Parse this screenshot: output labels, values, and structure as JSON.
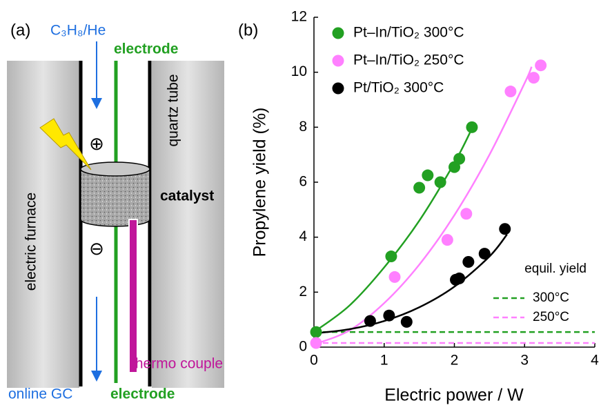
{
  "diagram": {
    "panel_label": "(a)",
    "feed_label": "C₃H₈/He",
    "top_electrode": "electrode",
    "tube_label": "quartz tube",
    "catalyst_label": "catalyst",
    "furnace_label": "electric furnace",
    "thermocouple_label": "thermo couple",
    "outlet_label": "online GC",
    "bottom_electrode": "electrode",
    "plus_sign": "⊕",
    "minus_sign": "⊖"
  },
  "chart_data": {
    "type": "scatter",
    "panel_label": "(b)",
    "x_label": "Electric power / W",
    "y_label": "Propylene yield (%)",
    "xlim": [
      0,
      4
    ],
    "xticks": [
      0,
      1,
      2,
      3,
      4
    ],
    "ylim": [
      0,
      12
    ],
    "yticks": [
      0,
      2,
      4,
      6,
      8,
      10,
      12
    ],
    "series": [
      {
        "name": "Pt–In/TiO₂ 300°C",
        "color": "#22a022",
        "x": [
          0.03,
          1.1,
          1.5,
          1.62,
          1.8,
          2.0,
          2.07,
          2.25
        ],
        "values": [
          0.55,
          3.3,
          5.8,
          6.25,
          6.0,
          6.55,
          6.85,
          8.0
        ]
      },
      {
        "name": "Pt–In/TiO₂ 250°C",
        "color": "#ff80ff",
        "x": [
          0.03,
          1.15,
          1.9,
          2.17,
          2.8,
          3.13,
          3.23
        ],
        "values": [
          0.15,
          2.55,
          3.9,
          4.85,
          9.3,
          9.8,
          10.25
        ]
      },
      {
        "name": "Pt/TiO₂ 300°C",
        "color": "#000000",
        "x": [
          0.8,
          1.07,
          1.32,
          2.02,
          2.07,
          2.2,
          2.43,
          2.72
        ],
        "values": [
          0.95,
          1.15,
          0.92,
          2.45,
          2.5,
          3.1,
          3.4,
          4.3
        ]
      }
    ],
    "fits": [
      {
        "color": "#22a022",
        "x": [
          0,
          0.5,
          1,
          1.5,
          2,
          2.25
        ],
        "values": [
          0.55,
          1.5,
          2.9,
          4.6,
          6.7,
          7.95
        ]
      },
      {
        "color": "#ff80ff",
        "x": [
          0,
          0.5,
          1,
          1.5,
          2,
          2.5,
          3,
          3.1
        ],
        "values": [
          0.1,
          0.6,
          1.6,
          3.0,
          4.8,
          7.0,
          9.6,
          10.2
        ]
      },
      {
        "color": "#000000",
        "x": [
          0,
          0.5,
          1,
          1.5,
          2,
          2.5,
          2.75
        ],
        "values": [
          0.5,
          0.65,
          0.95,
          1.45,
          2.2,
          3.3,
          4.1
        ]
      }
    ],
    "equilibrium": {
      "title": "equil. yield",
      "lines": [
        {
          "name": "300°C",
          "color": "#22a022",
          "value": 0.55
        },
        {
          "name": "250°C",
          "color": "#ff80ff",
          "value": 0.15
        }
      ]
    }
  }
}
